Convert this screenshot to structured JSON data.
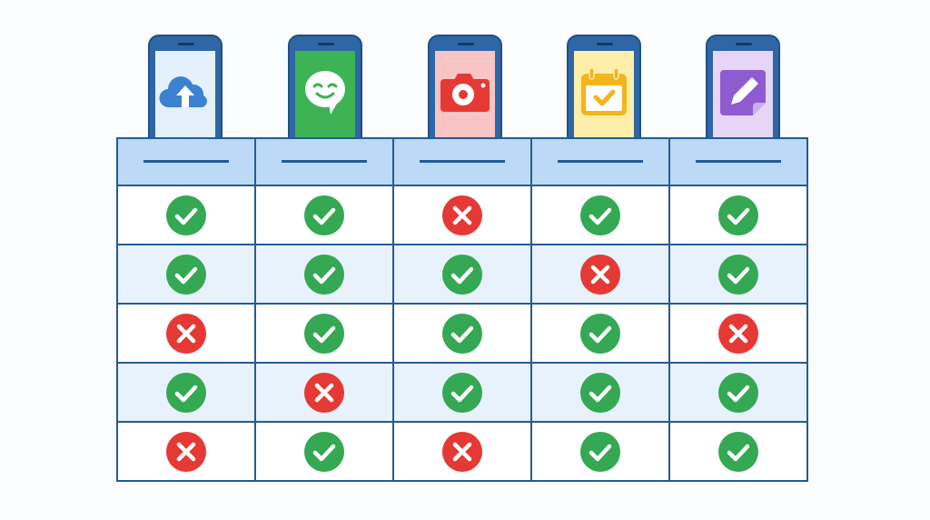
{
  "colors": {
    "check": "#34a853",
    "cross": "#e53935",
    "border": "#245b95",
    "header_bg": "#bcd9f5",
    "alt_row_bg": "#e8f2fd"
  },
  "apps": [
    {
      "icon": "cloud-upload-icon",
      "screen": "#e4f0fc",
      "accent": "#3b82d0"
    },
    {
      "icon": "chat-smile-icon",
      "screen": "#3db356",
      "accent": "#ffffff"
    },
    {
      "icon": "camera-icon",
      "screen": "#f8c4c4",
      "accent": "#e53935"
    },
    {
      "icon": "calendar-check-icon",
      "screen": "#fdeeaa",
      "accent": "#f2b51c"
    },
    {
      "icon": "note-pencil-icon",
      "screen": "#e6d5f7",
      "accent": "#8e5bd0"
    }
  ],
  "matrix": [
    [
      "check",
      "check",
      "cross",
      "check",
      "check"
    ],
    [
      "check",
      "check",
      "check",
      "cross",
      "check"
    ],
    [
      "cross",
      "check",
      "check",
      "check",
      "cross"
    ],
    [
      "check",
      "cross",
      "check",
      "check",
      "check"
    ],
    [
      "cross",
      "check",
      "cross",
      "check",
      "check"
    ]
  ]
}
